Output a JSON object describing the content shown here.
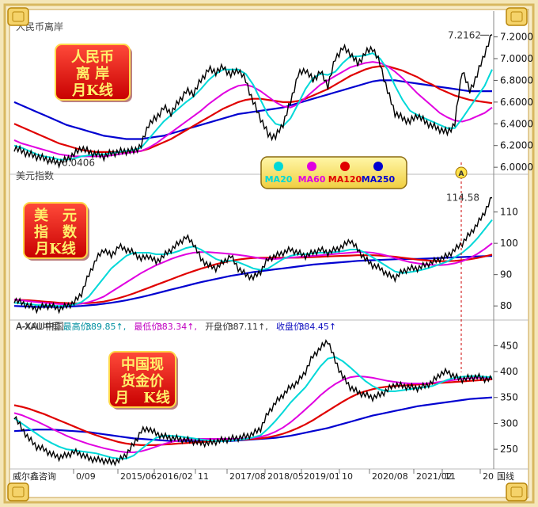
{
  "colors": {
    "ma20": "#00d8d8",
    "ma60": "#e000e0",
    "ma120": "#e00000",
    "ma250": "#0000d0",
    "price": "#000000"
  },
  "legend": {
    "items": [
      "MA20",
      "MA60",
      "MA120",
      "MA250"
    ]
  },
  "xaxis": {
    "labels": [
      "0/09",
      "2015/06",
      "2016/02",
      "11",
      "2017/08",
      "2018/05",
      "2019/01",
      "10",
      "2020/08",
      "2021/02",
      "11",
      "20"
    ]
  },
  "watermark": "威尔鑫咨询",
  "corner_text": "国线",
  "chart_data": [
    {
      "type": "line",
      "panel": "top",
      "label": "人民币离岸",
      "title_box": [
        "人民币",
        "离 岸",
        "月K线"
      ],
      "ylim": [
        5.95,
        7.35
      ],
      "yticks": [
        6.0,
        6.2,
        6.4,
        6.6,
        6.8,
        7.0,
        7.2
      ],
      "ytick_labels": [
        "6.0000",
        "6.2000",
        "6.4000",
        "6.6000",
        "6.8000",
        "7.0000",
        "7.2000"
      ],
      "annotations": [
        {
          "text": "7.2162",
          "value": 7.2162
        },
        {
          "text": "6.0406",
          "value": 6.0406
        }
      ],
      "price": [
        6.18,
        6.15,
        6.12,
        6.1,
        6.08,
        6.06,
        6.04,
        6.07,
        6.12,
        6.18,
        6.14,
        6.12,
        6.1,
        6.13,
        6.14,
        6.15,
        6.15,
        6.2,
        6.4,
        6.45,
        6.55,
        6.5,
        6.6,
        6.7,
        6.68,
        6.8,
        6.9,
        6.88,
        6.92,
        6.85,
        6.9,
        6.8,
        6.6,
        6.45,
        6.3,
        6.28,
        6.4,
        6.6,
        6.85,
        6.9,
        6.8,
        6.88,
        6.75,
        7.0,
        7.1,
        7.05,
        6.95,
        7.05,
        7.1,
        6.95,
        6.7,
        6.5,
        6.45,
        6.42,
        6.48,
        6.42,
        6.38,
        6.35,
        6.32,
        6.4,
        6.9,
        6.7,
        6.85,
        7.05,
        7.22
      ],
      "ma20": [
        6.2,
        6.18,
        6.15,
        6.12,
        6.1,
        6.09,
        6.07,
        6.07,
        6.08,
        6.1,
        6.11,
        6.12,
        6.12,
        6.13,
        6.14,
        6.15,
        6.16,
        6.18,
        6.26,
        6.34,
        6.42,
        6.48,
        6.54,
        6.6,
        6.65,
        6.72,
        6.8,
        6.86,
        6.9,
        6.9,
        6.9,
        6.86,
        6.76,
        6.62,
        6.48,
        6.4,
        6.38,
        6.45,
        6.58,
        6.72,
        6.82,
        6.86,
        6.85,
        6.88,
        6.96,
        7.02,
        7.02,
        7.03,
        7.05,
        7.0,
        6.9,
        6.75,
        6.62,
        6.52,
        6.48,
        6.45,
        6.42,
        6.39,
        6.36,
        6.36,
        6.45,
        6.55,
        6.65,
        6.75,
        6.9
      ],
      "ma60": [
        6.25,
        6.22,
        6.2,
        6.18,
        6.16,
        6.14,
        6.12,
        6.11,
        6.1,
        6.1,
        6.1,
        6.1,
        6.1,
        6.11,
        6.12,
        6.13,
        6.14,
        6.15,
        6.18,
        6.22,
        6.27,
        6.32,
        6.37,
        6.42,
        6.47,
        6.52,
        6.58,
        6.63,
        6.68,
        6.72,
        6.75,
        6.76,
        6.74,
        6.7,
        6.65,
        6.6,
        6.56,
        6.55,
        6.58,
        6.64,
        6.7,
        6.76,
        6.8,
        6.84,
        6.88,
        6.92,
        6.94,
        6.96,
        6.97,
        6.96,
        6.93,
        6.88,
        6.82,
        6.75,
        6.68,
        6.62,
        6.56,
        6.5,
        6.46,
        6.43,
        6.42,
        6.44,
        6.47,
        6.5,
        6.55
      ],
      "ma120": [
        6.4,
        6.37,
        6.34,
        6.31,
        6.28,
        6.25,
        6.22,
        6.2,
        6.18,
        6.16,
        6.15,
        6.14,
        6.14,
        6.14,
        6.14,
        6.14,
        6.14,
        6.15,
        6.17,
        6.2,
        6.23,
        6.26,
        6.3,
        6.34,
        6.38,
        6.42,
        6.46,
        6.5,
        6.54,
        6.57,
        6.6,
        6.62,
        6.63,
        6.63,
        6.62,
        6.61,
        6.6,
        6.6,
        6.61,
        6.63,
        6.66,
        6.69,
        6.72,
        6.76,
        6.8,
        6.84,
        6.87,
        6.9,
        6.92,
        6.93,
        6.93,
        6.91,
        6.89,
        6.86,
        6.83,
        6.79,
        6.76,
        6.72,
        6.69,
        6.66,
        6.64,
        6.62,
        6.61,
        6.6,
        6.59
      ],
      "ma250": [
        6.6,
        6.57,
        6.54,
        6.51,
        6.48,
        6.45,
        6.42,
        6.39,
        6.37,
        6.35,
        6.33,
        6.31,
        6.29,
        6.28,
        6.27,
        6.26,
        6.26,
        6.26,
        6.27,
        6.28,
        6.29,
        6.31,
        6.33,
        6.35,
        6.37,
        6.39,
        6.41,
        6.43,
        6.45,
        6.47,
        6.49,
        6.5,
        6.51,
        6.52,
        6.53,
        6.54,
        6.55,
        6.57,
        6.59,
        6.61,
        6.63,
        6.65,
        6.67,
        6.69,
        6.71,
        6.73,
        6.75,
        6.77,
        6.79,
        6.8,
        6.8,
        6.8,
        6.79,
        6.78,
        6.77,
        6.76,
        6.75,
        6.74,
        6.73,
        6.72,
        6.71,
        6.7,
        6.7,
        6.7,
        6.7
      ]
    },
    {
      "type": "line",
      "panel": "middle",
      "label": "美元指数",
      "title_box": [
        "美　元",
        "指　数",
        "月K线"
      ],
      "ylim": [
        76,
        118
      ],
      "yticks": [
        80,
        90,
        100,
        110
      ],
      "ytick_labels": [
        "80",
        "90",
        "100",
        "110"
      ],
      "annotations": [
        {
          "text": "114.58",
          "value": 114.58
        }
      ],
      "price": [
        82,
        81,
        80,
        79,
        80,
        80,
        79,
        80,
        81,
        84,
        90,
        95,
        98,
        96,
        99,
        98,
        97,
        95,
        96,
        94,
        96,
        98,
        100,
        102,
        100,
        95,
        93,
        92,
        94,
        96,
        92,
        90,
        89,
        91,
        95,
        96,
        97,
        98,
        97,
        96,
        97,
        98,
        97,
        98,
        99,
        101,
        98,
        95,
        93,
        92,
        90,
        89,
        91,
        92,
        92,
        93,
        94,
        95,
        96,
        98,
        100,
        103,
        106,
        110,
        114.58
      ],
      "ma20": [
        81,
        80.8,
        80.6,
        80.3,
        80.2,
        80.1,
        80,
        80.1,
        80.4,
        81.2,
        83,
        86,
        89,
        92,
        94,
        96,
        97,
        97,
        97,
        96.5,
        96.5,
        96.8,
        97.5,
        98.5,
        99,
        98,
        96.5,
        95,
        94.2,
        94.5,
        94,
        93,
        92,
        91.5,
        92,
        93.5,
        95,
        96,
        96.5,
        96.5,
        96.8,
        97,
        97,
        97.2,
        97.5,
        98,
        98,
        97,
        95.5,
        94,
        92.5,
        91,
        90.5,
        90.8,
        91.2,
        91.8,
        92.5,
        93.3,
        94.2,
        95.5,
        97,
        99,
        101.5,
        104.5,
        107.5
      ],
      "ma60": [
        82,
        81.8,
        81.5,
        81.2,
        81,
        80.8,
        80.6,
        80.5,
        80.5,
        80.7,
        81.2,
        82,
        83,
        84.5,
        86,
        87.5,
        89,
        90.5,
        91.8,
        93,
        94,
        95,
        95.8,
        96.5,
        97,
        97.2,
        97.2,
        97,
        96.8,
        96.6,
        96.3,
        96,
        95.6,
        95.2,
        95,
        95,
        95.2,
        95.4,
        95.6,
        95.8,
        96,
        96.2,
        96.4,
        96.6,
        96.8,
        97,
        97.2,
        97.2,
        97,
        96.6,
        96,
        95.3,
        94.6,
        94,
        93.6,
        93.3,
        93.1,
        93,
        93.2,
        93.6,
        94.3,
        95.3,
        96.6,
        98.2,
        100
      ],
      "ma120": [
        82,
        81.9,
        81.8,
        81.6,
        81.4,
        81.2,
        81,
        80.9,
        80.8,
        80.8,
        80.9,
        81.1,
        81.4,
        81.9,
        82.5,
        83.2,
        84,
        84.9,
        85.8,
        86.7,
        87.6,
        88.5,
        89.4,
        90.3,
        91.1,
        91.9,
        92.6,
        93.3,
        93.9,
        94.4,
        94.8,
        95.1,
        95.3,
        95.4,
        95.4,
        95.4,
        95.4,
        95.4,
        95.4,
        95.5,
        95.6,
        95.7,
        95.8,
        95.9,
        96,
        96.1,
        96.2,
        96.2,
        96.2,
        96.1,
        95.9,
        95.7,
        95.4,
        95.1,
        94.8,
        94.6,
        94.4,
        94.3,
        94.3,
        94.4,
        94.6,
        94.9,
        95.3,
        95.8,
        96.4
      ],
      "ma250": [
        80,
        79.9,
        79.8,
        79.7,
        79.7,
        79.7,
        79.7,
        79.8,
        79.9,
        80,
        80.2,
        80.4,
        80.7,
        81,
        81.4,
        81.8,
        82.3,
        82.8,
        83.4,
        84,
        84.6,
        85.2,
        85.8,
        86.4,
        87,
        87.6,
        88.1,
        88.6,
        89.1,
        89.6,
        90,
        90.4,
        90.8,
        91.1,
        91.4,
        91.7,
        92,
        92.3,
        92.6,
        92.9,
        93.2,
        93.4,
        93.6,
        93.8,
        94,
        94.2,
        94.4,
        94.5,
        94.6,
        94.7,
        94.8,
        94.9,
        95,
        95,
        95,
        95.1,
        95.2,
        95.3,
        95.4,
        95.5,
        95.6,
        95.7,
        95.8,
        95.9,
        96
      ]
    },
    {
      "type": "line",
      "panel": "bottom",
      "label": "A-XAU中国",
      "title_box": [
        "中国现",
        "货金价",
        "月　K线"
      ],
      "info": {
        "high_label": "最高价:",
        "high": "389.85",
        "low_label": "最低价:",
        "low": "383.34",
        "open_label": "开盘价:",
        "open": "387.11",
        "close_label": "收盘价:",
        "close": "384.45"
      },
      "ylim": [
        215,
        475
      ],
      "yticks": [
        250,
        300,
        350,
        400,
        450
      ],
      "ytick_labels": [
        "250",
        "300",
        "350",
        "400",
        "450"
      ],
      "price": [
        315,
        290,
        270,
        255,
        250,
        240,
        235,
        238,
        245,
        240,
        232,
        230,
        228,
        225,
        228,
        240,
        260,
        285,
        290,
        280,
        275,
        272,
        270,
        268,
        265,
        262,
        262,
        265,
        268,
        270,
        272,
        275,
        280,
        290,
        320,
        340,
        355,
        370,
        380,
        400,
        430,
        445,
        460,
        420,
        390,
        370,
        360,
        355,
        350,
        355,
        365,
        375,
        372,
        370,
        368,
        372,
        380,
        395,
        400,
        390,
        385,
        388,
        390,
        386,
        384.45
      ],
      "ma20": [
        310,
        300,
        290,
        280,
        270,
        262,
        255,
        250,
        248,
        246,
        244,
        242,
        238,
        234,
        232,
        232,
        238,
        250,
        262,
        272,
        276,
        276,
        275,
        273,
        271,
        269,
        267,
        266,
        266,
        267,
        268,
        270,
        273,
        277,
        290,
        305,
        322,
        340,
        355,
        370,
        390,
        410,
        425,
        428,
        420,
        408,
        395,
        382,
        372,
        365,
        362,
        362,
        364,
        366,
        368,
        370,
        372,
        378,
        384,
        388,
        390,
        391,
        391,
        390,
        389
      ],
      "ma60": [
        320,
        316,
        310,
        304,
        297,
        290,
        283,
        276,
        270,
        265,
        260,
        256,
        252,
        249,
        246,
        244,
        244,
        246,
        250,
        255,
        260,
        264,
        267,
        269,
        270,
        270,
        270,
        270,
        270,
        270,
        270,
        271,
        272,
        274,
        278,
        284,
        292,
        302,
        314,
        327,
        340,
        354,
        366,
        376,
        384,
        389,
        391,
        390,
        388,
        385,
        382,
        380,
        378,
        377,
        377,
        377,
        378,
        380,
        382,
        384,
        386,
        387,
        388,
        388,
        388
      ],
      "ma120": [
        335,
        332,
        328,
        323,
        318,
        312,
        306,
        300,
        294,
        288,
        282,
        277,
        272,
        268,
        264,
        261,
        259,
        258,
        258,
        258,
        259,
        260,
        261,
        262,
        263,
        264,
        265,
        266,
        267,
        268,
        268,
        269,
        270,
        271,
        273,
        276,
        280,
        285,
        291,
        298,
        306,
        315,
        324,
        333,
        342,
        350,
        357,
        362,
        366,
        369,
        371,
        372,
        373,
        374,
        375,
        376,
        377,
        378,
        379,
        380,
        381,
        382,
        383,
        384,
        385
      ],
      "ma250": [
        285,
        286,
        287,
        288,
        288,
        288,
        287,
        286,
        285,
        284,
        283,
        281,
        279,
        277,
        275,
        273,
        271,
        270,
        269,
        268,
        267,
        266,
        266,
        266,
        266,
        266,
        266,
        266,
        266,
        266,
        267,
        268,
        269,
        270,
        271,
        272,
        274,
        276,
        279,
        282,
        285,
        288,
        291,
        295,
        299,
        303,
        307,
        311,
        315,
        318,
        321,
        324,
        327,
        330,
        333,
        335,
        337,
        339,
        341,
        343,
        345,
        347,
        348,
        349,
        350
      ]
    }
  ]
}
